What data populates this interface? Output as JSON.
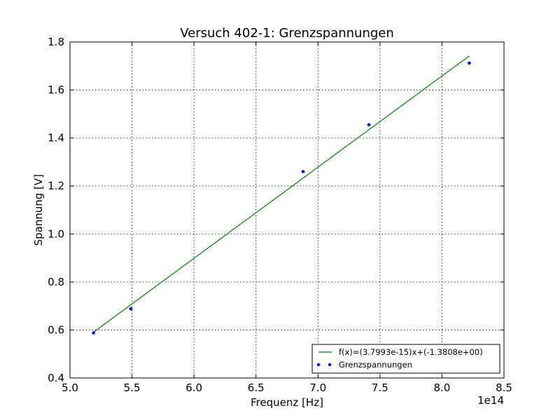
{
  "chart_data": {
    "type": "scatter",
    "title": "Versuch 402-1: Grenzspannungen",
    "xlabel": "Frequenz [Hz]",
    "ylabel": "Spannung [V]",
    "x_offset_label": "1e14",
    "xlim": [
      5.0,
      8.5
    ],
    "ylim": [
      0.4,
      1.8
    ],
    "x_scale_exponent": 14,
    "xticks": [
      5.0,
      5.5,
      6.0,
      6.5,
      7.0,
      7.5,
      8.0,
      8.5
    ],
    "xtick_labels": [
      "5.0",
      "5.5",
      "6.0",
      "6.5",
      "7.0",
      "7.5",
      "8.0",
      "8.5"
    ],
    "yticks": [
      0.4,
      0.6,
      0.8,
      1.0,
      1.2,
      1.4,
      1.6,
      1.8
    ],
    "ytick_labels": [
      "0.4",
      "0.6",
      "0.8",
      "1.0",
      "1.2",
      "1.4",
      "1.6",
      "1.8"
    ],
    "grid": true,
    "legend_position": "lower-right",
    "series": [
      {
        "name": "f(x)=(3.7993e-15)x+(-1.3808e+00)",
        "kind": "line",
        "color": "#008000",
        "x": [
          5.19,
          8.22
        ],
        "y": [
          0.591,
          1.742
        ]
      },
      {
        "name": "Grenzspannungen",
        "kind": "scatter",
        "color": "#0000ff",
        "x": [
          5.19,
          5.49,
          6.88,
          7.41,
          8.22
        ],
        "y": [
          0.588,
          0.688,
          1.26,
          1.455,
          1.712
        ]
      }
    ]
  }
}
